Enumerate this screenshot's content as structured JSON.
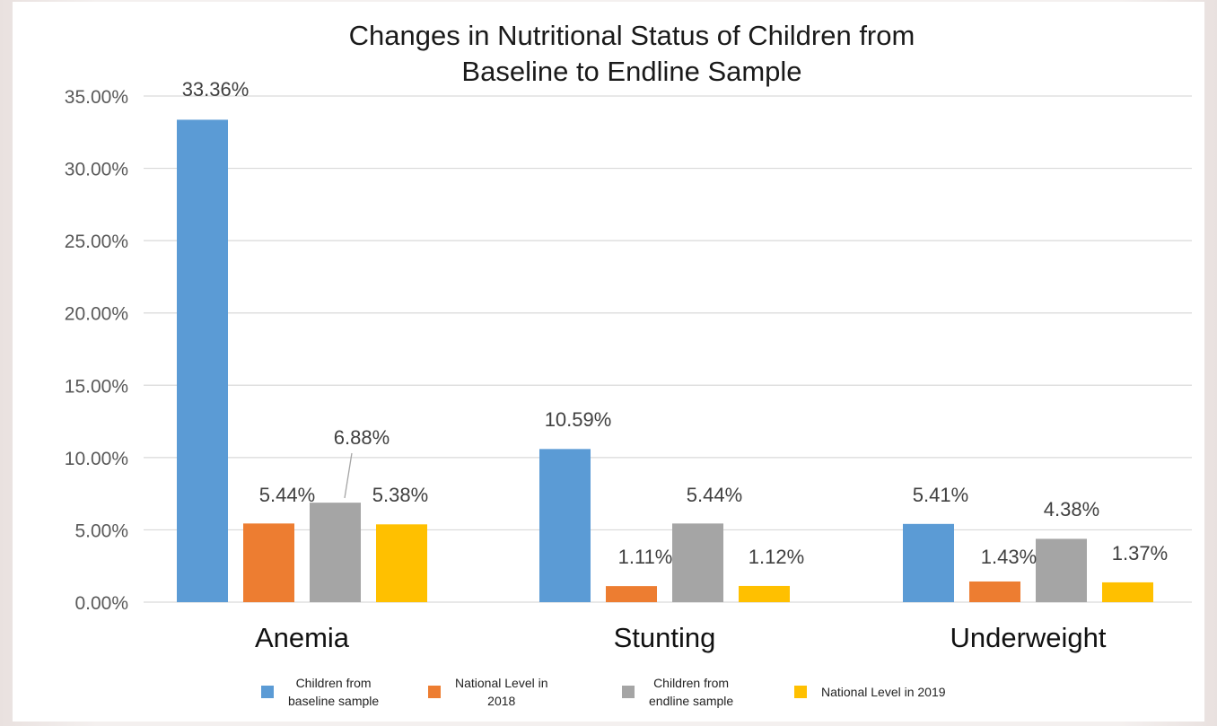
{
  "chart_data": {
    "type": "bar",
    "title": "Changes in Nutritional Status of Children from\nBaseline to Endline Sample",
    "categories": [
      "Anemia",
      "Stunting",
      "Underweight"
    ],
    "series": [
      {
        "name": "Children from baseline sample",
        "color": "#5b9bd5",
        "values": [
          33.36,
          10.59,
          5.41
        ],
        "labels": [
          "33.36%",
          "10.59%",
          "5.41%"
        ]
      },
      {
        "name": "National Level in 2018",
        "color": "#ed7d31",
        "values": [
          5.44,
          1.11,
          1.43
        ],
        "labels": [
          "5.44%",
          "1.11%",
          "1.43%"
        ]
      },
      {
        "name": "Children from endline sample",
        "color": "#a5a5a5",
        "values": [
          6.88,
          5.44,
          4.38
        ],
        "labels": [
          "6.88%",
          "5.44%",
          "4.38%"
        ]
      },
      {
        "name": "National Level in 2019",
        "color": "#ffc000",
        "values": [
          5.38,
          1.12,
          1.37
        ],
        "labels": [
          "5.38%",
          "1.12%",
          "1.37%"
        ]
      }
    ],
    "y_ticks": [
      "0.00%",
      "5.00%",
      "10.00%",
      "15.00%",
      "20.00%",
      "25.00%",
      "30.00%",
      "35.00%"
    ],
    "ylim": [
      0,
      35
    ],
    "grid": true,
    "legend_position": "bottom"
  },
  "legend": {
    "items": [
      {
        "line1": "Children from",
        "line2": "baseline sample"
      },
      {
        "line1": "National Level in",
        "line2": "2018"
      },
      {
        "line1": "Children from",
        "line2": "endline sample"
      },
      {
        "line1": "National Level in 2019",
        "line2": ""
      }
    ]
  }
}
